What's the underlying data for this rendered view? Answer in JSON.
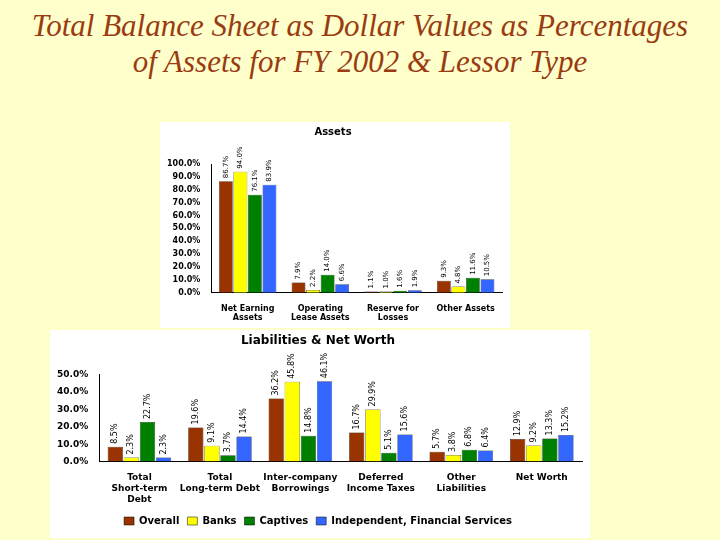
{
  "title": "Total Balance Sheet as Dollar Values as Percentages of Assets for FY 2002 & Lessor Type",
  "chart_data": [
    {
      "type": "bar",
      "title": "Assets",
      "categories": [
        "Net Earning Assets",
        "Operating Lease Assets",
        "Reserve for Losses",
        "Other Assets"
      ],
      "series": [
        {
          "color": "#993300",
          "values": [
            86.7,
            7.9,
            1.1,
            9.3
          ],
          "value_labels": [
            "86.7%",
            "7.9%",
            "1.1%",
            "9.3%"
          ]
        },
        {
          "color": "#ffff00",
          "values": [
            94.0,
            2.2,
            1.0,
            4.8
          ],
          "value_labels": [
            "94.0%",
            "2.2%",
            "1.0%",
            "4.8%"
          ]
        },
        {
          "color": "#008000",
          "values": [
            76.1,
            14.0,
            1.6,
            11.6
          ],
          "value_labels": [
            "76.1%",
            "14.0%",
            "1.6%",
            "11.6%"
          ]
        },
        {
          "color": "#3366ff",
          "values": [
            83.9,
            6.6,
            1.9,
            10.5
          ],
          "value_labels": [
            "83.9%",
            "6.6%",
            "1.9%",
            "10.5%"
          ]
        }
      ],
      "ylim": [
        0,
        100
      ],
      "yticks": [
        {
          "value": 0,
          "label": "0.0%"
        },
        {
          "value": 10,
          "label": "10.0%"
        },
        {
          "value": 20,
          "label": "20.0%"
        },
        {
          "value": 30,
          "label": "30.0%"
        },
        {
          "value": 40,
          "label": "40.0%"
        },
        {
          "value": 50,
          "label": "50.0%"
        },
        {
          "value": 60,
          "label": "60.0%"
        },
        {
          "value": 70,
          "label": "70.0%"
        },
        {
          "value": 80,
          "label": "80.0%"
        },
        {
          "value": 90,
          "label": "90.0%"
        },
        {
          "value": 100,
          "label": "100.0%"
        }
      ],
      "grid": false,
      "data_labels": true
    },
    {
      "type": "bar",
      "title": "Liabilities & Net Worth",
      "categories": [
        "Total Short-term Debt",
        "Total Long-term Debt",
        "Inter-company Borrowings",
        "Deferred Income Taxes",
        "Other Liabilities",
        "Net Worth"
      ],
      "series": [
        {
          "name": "Overall",
          "color": "#993300",
          "values": [
            8.5,
            19.6,
            36.2,
            16.7,
            5.7,
            12.9
          ],
          "value_labels": [
            "8.5%",
            "19.6%",
            "36.2%",
            "16.7%",
            "5.7%",
            "12.9%"
          ]
        },
        {
          "name": "Banks",
          "color": "#ffff00",
          "values": [
            2.3,
            9.1,
            45.8,
            29.9,
            3.8,
            9.2
          ],
          "value_labels": [
            "2.3%",
            "9.1%",
            "45.8%",
            "29.9%",
            "3.8%",
            "9.2%"
          ]
        },
        {
          "name": "Captives",
          "color": "#008000",
          "values": [
            22.7,
            3.7,
            14.8,
            5.1,
            6.8,
            13.3
          ],
          "value_labels": [
            "22.7%",
            "3.7%",
            "14.8%",
            "5.1%",
            "6.8%",
            "13.3%"
          ]
        },
        {
          "name": "Independent, Financial Services",
          "color": "#3366ff",
          "values": [
            2.3,
            14.4,
            46.1,
            15.6,
            6.4,
            15.2
          ],
          "value_labels": [
            "2.3%",
            "14.4%",
            "46.1%",
            "15.6%",
            "6.4%",
            "15.2%"
          ]
        }
      ],
      "ylim": [
        0,
        50
      ],
      "yticks": [
        {
          "value": 0,
          "label": "0.0%"
        },
        {
          "value": 10,
          "label": "10.0%"
        },
        {
          "value": 20,
          "label": "20.0%"
        },
        {
          "value": 30,
          "label": "30.0%"
        },
        {
          "value": 40,
          "label": "40.0%"
        },
        {
          "value": 50,
          "label": "50.0%"
        }
      ],
      "grid": false,
      "data_labels": true,
      "legend": "bottom"
    }
  ]
}
